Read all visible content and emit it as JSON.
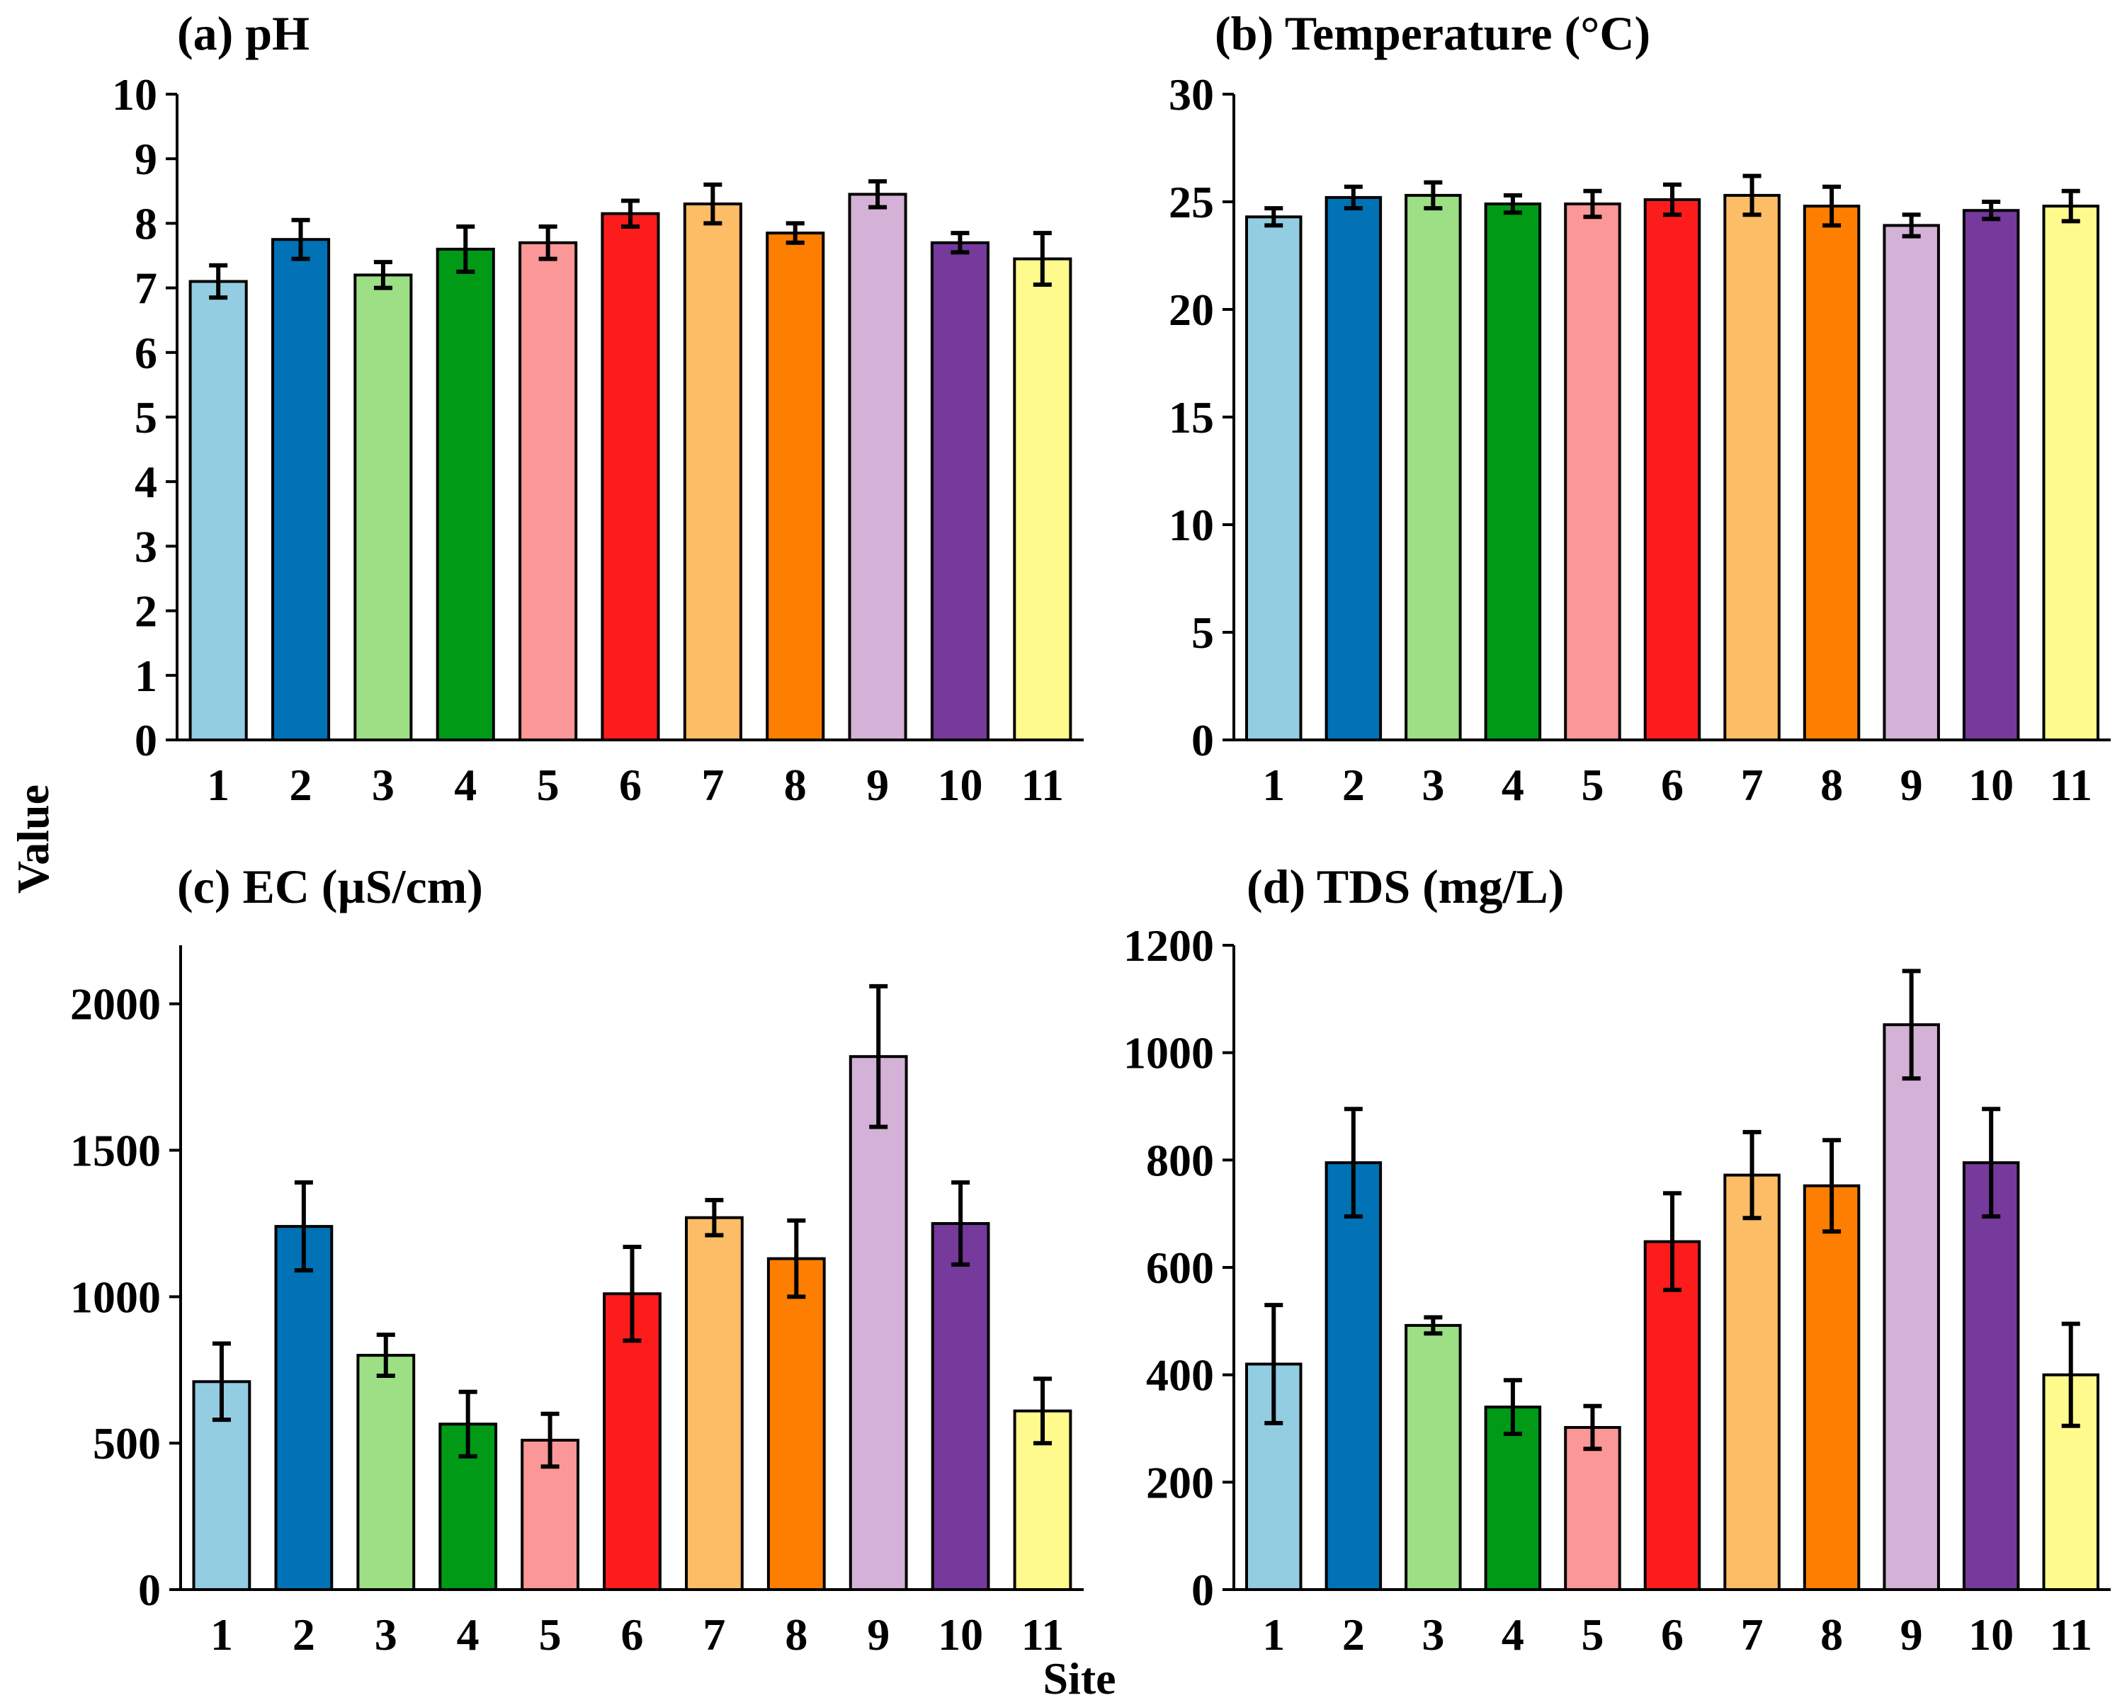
{
  "figure": {
    "ylabel": "Value",
    "xlabel": "Site"
  },
  "chart_data": [
    {
      "type": "bar",
      "title": "(a) pH",
      "categories": [
        "1",
        "2",
        "3",
        "4",
        "5",
        "6",
        "7",
        "8",
        "9",
        "10",
        "11"
      ],
      "values": [
        7.1,
        7.75,
        7.2,
        7.6,
        7.7,
        8.15,
        8.3,
        7.85,
        8.45,
        7.7,
        7.45
      ],
      "errors": [
        0.25,
        0.3,
        0.2,
        0.35,
        0.25,
        0.2,
        0.3,
        0.15,
        0.2,
        0.15,
        0.4
      ],
      "ylim": [
        0,
        10
      ],
      "yticks": [
        0,
        1,
        2,
        3,
        4,
        5,
        6,
        7,
        8,
        9,
        10
      ]
    },
    {
      "type": "bar",
      "title": "(b) Temperature (°C)",
      "categories": [
        "1",
        "2",
        "3",
        "4",
        "5",
        "6",
        "7",
        "8",
        "9",
        "10",
        "11"
      ],
      "values": [
        24.3,
        25.2,
        25.3,
        24.9,
        24.9,
        25.1,
        25.3,
        24.8,
        23.9,
        24.6,
        24.8
      ],
      "errors": [
        0.4,
        0.5,
        0.6,
        0.4,
        0.6,
        0.7,
        0.9,
        0.9,
        0.5,
        0.4,
        0.7
      ],
      "ylim": [
        0,
        30
      ],
      "yticks": [
        0,
        5,
        10,
        15,
        20,
        25,
        30
      ]
    },
    {
      "type": "bar",
      "title": "(c) EC (µS/cm)",
      "categories": [
        "1",
        "2",
        "3",
        "4",
        "5",
        "6",
        "7",
        "8",
        "9",
        "10",
        "11"
      ],
      "values": [
        710,
        1240,
        800,
        565,
        510,
        1010,
        1270,
        1130,
        1820,
        1250,
        610
      ],
      "errors": [
        130,
        150,
        70,
        110,
        90,
        160,
        60,
        130,
        240,
        140,
        110
      ],
      "ylim": [
        0,
        2200
      ],
      "yticks": [
        0,
        500,
        1000,
        1500,
        2000
      ]
    },
    {
      "type": "bar",
      "title": "(d) TDS (mg/L)",
      "categories": [
        "1",
        "2",
        "3",
        "4",
        "5",
        "6",
        "7",
        "8",
        "9",
        "10",
        "11"
      ],
      "values": [
        420,
        795,
        492,
        340,
        302,
        648,
        772,
        752,
        1052,
        795,
        400
      ],
      "errors": [
        110,
        100,
        15,
        50,
        40,
        90,
        80,
        85,
        100,
        100,
        95
      ],
      "ylim": [
        0,
        1200
      ],
      "yticks": [
        0,
        200,
        400,
        600,
        800,
        1000,
        1200
      ]
    }
  ],
  "colors": [
    "#93cde2",
    "#0072b5",
    "#9ddf85",
    "#009a17",
    "#fc9797",
    "#fd1c1c",
    "#fdbc66",
    "#fd7e00",
    "#d4b1d6",
    "#753a9c",
    "#fefa8c"
  ]
}
